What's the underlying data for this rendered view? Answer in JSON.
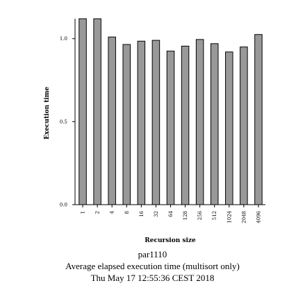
{
  "chart_data": {
    "type": "bar",
    "xlabel": "Recursion size",
    "ylabel": "Execution time",
    "categories": [
      "1",
      "2",
      "4",
      "8",
      "16",
      "32",
      "64",
      "128",
      "256",
      "512",
      "1024",
      "2048",
      "4096"
    ],
    "series": [
      {
        "values": [
          1.12,
          1.12,
          1.01,
          0.965,
          0.985,
          0.99,
          0.925,
          0.955,
          0.995,
          0.97,
          0.92,
          0.95,
          1.025
        ]
      }
    ],
    "ylim": [
      0,
      1.12
    ],
    "yticks": [
      {
        "value": 0.0,
        "label": "0.0"
      },
      {
        "value": 0.5,
        "label": "0.5"
      },
      {
        "value": 1.0,
        "label": "1.0"
      }
    ],
    "bar_color": "#999999",
    "grid": false
  },
  "captions": {
    "line1": "par1110",
    "line2": "Average elapsed execution time (multisort only)",
    "line3": "Thu May 17 12:55:36 CEST 2018"
  }
}
